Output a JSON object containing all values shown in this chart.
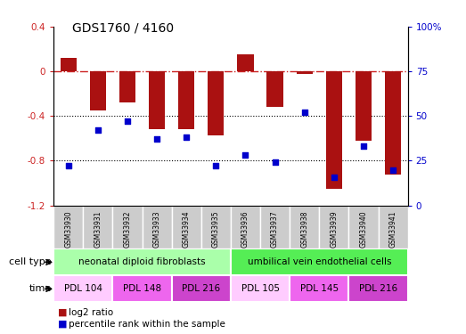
{
  "title": "GDS1760 / 4160",
  "samples": [
    "GSM33930",
    "GSM33931",
    "GSM33932",
    "GSM33933",
    "GSM33934",
    "GSM33935",
    "GSM33936",
    "GSM33937",
    "GSM33938",
    "GSM33939",
    "GSM33940",
    "GSM33941"
  ],
  "log2_ratio": [
    0.12,
    -0.35,
    -0.28,
    -0.52,
    -0.52,
    -0.57,
    0.15,
    -0.32,
    -0.02,
    -1.05,
    -0.62,
    -0.92
  ],
  "percentile_rank": [
    22,
    42,
    47,
    37,
    38,
    22,
    28,
    24,
    52,
    16,
    33,
    20
  ],
  "ylim_left": [
    -1.2,
    0.4
  ],
  "ylim_right": [
    0,
    100
  ],
  "yticks_left": [
    -1.2,
    -0.8,
    -0.4,
    0.0,
    0.4
  ],
  "yticks_right": [
    0,
    25,
    50,
    75,
    100
  ],
  "cell_type_groups": [
    {
      "label": "neonatal diploid fibroblasts",
      "start": 0,
      "end": 6,
      "color": "#aaffaa"
    },
    {
      "label": "umbilical vein endothelial cells",
      "start": 6,
      "end": 12,
      "color": "#55ee55"
    }
  ],
  "time_groups": [
    {
      "label": "PDL 104",
      "start": 0,
      "end": 2,
      "color": "#ffccff"
    },
    {
      "label": "PDL 148",
      "start": 2,
      "end": 4,
      "color": "#ee66ee"
    },
    {
      "label": "PDL 216",
      "start": 4,
      "end": 6,
      "color": "#cc44cc"
    },
    {
      "label": "PDL 105",
      "start": 6,
      "end": 8,
      "color": "#ffccff"
    },
    {
      "label": "PDL 145",
      "start": 8,
      "end": 10,
      "color": "#ee66ee"
    },
    {
      "label": "PDL 216",
      "start": 10,
      "end": 12,
      "color": "#cc44cc"
    }
  ],
  "sample_box_color": "#cccccc",
  "bar_color": "#aa1111",
  "dot_color": "#0000cc",
  "dashed_line_color": "#cc2222",
  "dot_line_color": "black",
  "legend_bar_label": "log2 ratio",
  "legend_dot_label": "percentile rank within the sample",
  "cell_type_label": "cell type",
  "time_label": "time",
  "bar_width": 0.55
}
